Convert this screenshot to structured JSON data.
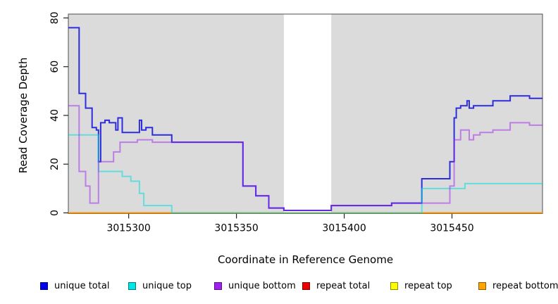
{
  "figure": {
    "xlabel": "Coordinate in Reference Genome",
    "ylabel": "Read Coverage Depth"
  },
  "chart_data": {
    "type": "line",
    "subtype": "step-coverage-plot",
    "title": "",
    "xlabel": "Coordinate in Reference Genome",
    "ylabel": "Read Coverage Depth",
    "xlim": [
      3015272,
      3015492
    ],
    "ylim": [
      0,
      80
    ],
    "x_ticks": [
      3015300,
      3015350,
      3015400,
      3015450
    ],
    "y_ticks": [
      0,
      20,
      40,
      60,
      80
    ],
    "grid": false,
    "plot_bg_color": "#dbdbdb",
    "outer_bg_color": "#ffffff",
    "box_color": "#4d4d4d",
    "masked_region": {
      "x_start": 3015372,
      "x_end": 3015394,
      "color": "#ffffff"
    },
    "legend_position": "bottom",
    "series": [
      {
        "name": "unique total",
        "color": "#2424dd",
        "opacity": 0.95,
        "width": 2,
        "steps": [
          [
            3015272,
            76
          ],
          [
            3015277,
            49
          ],
          [
            3015280,
            43
          ],
          [
            3015283,
            35
          ],
          [
            3015285,
            34
          ],
          [
            3015286,
            21
          ],
          [
            3015287,
            37
          ],
          [
            3015289,
            38
          ],
          [
            3015291,
            37
          ],
          [
            3015294,
            34
          ],
          [
            3015295,
            39
          ],
          [
            3015297,
            33
          ],
          [
            3015305,
            38
          ],
          [
            3015306,
            34
          ],
          [
            3015308,
            35
          ],
          [
            3015311,
            32
          ],
          [
            3015320,
            29
          ],
          [
            3015353,
            11
          ],
          [
            3015359,
            7
          ],
          [
            3015365,
            2
          ],
          [
            3015372,
            1
          ],
          [
            3015394,
            3
          ],
          [
            3015422,
            4
          ],
          [
            3015436,
            14
          ],
          [
            3015449,
            21
          ],
          [
            3015451,
            39
          ],
          [
            3015452,
            43
          ],
          [
            3015454,
            44
          ],
          [
            3015457,
            46
          ],
          [
            3015458,
            43
          ],
          [
            3015460,
            44
          ],
          [
            3015469,
            46
          ],
          [
            3015477,
            48
          ],
          [
            3015486,
            47
          ]
        ]
      },
      {
        "name": "unique top",
        "color": "#00dcdc",
        "opacity": 0.55,
        "width": 2,
        "steps": [
          [
            3015272,
            32
          ],
          [
            3015286,
            17
          ],
          [
            3015297,
            15
          ],
          [
            3015301,
            13
          ],
          [
            3015305,
            8
          ],
          [
            3015307,
            3
          ],
          [
            3015320,
            0
          ],
          [
            3015436,
            10
          ],
          [
            3015456,
            12
          ]
        ]
      },
      {
        "name": "unique bottom",
        "color": "#a020f0",
        "opacity": 0.5,
        "width": 2,
        "steps": [
          [
            3015272,
            44
          ],
          [
            3015277,
            17
          ],
          [
            3015280,
            11
          ],
          [
            3015282,
            4
          ],
          [
            3015286,
            21
          ],
          [
            3015293,
            25
          ],
          [
            3015296,
            29
          ],
          [
            3015304,
            30
          ],
          [
            3015311,
            29
          ],
          [
            3015353,
            11
          ],
          [
            3015359,
            7
          ],
          [
            3015365,
            2
          ],
          [
            3015372,
            1
          ],
          [
            3015394,
            3
          ],
          [
            3015422,
            4
          ],
          [
            3015449,
            11
          ],
          [
            3015451,
            30
          ],
          [
            3015454,
            34
          ],
          [
            3015458,
            30
          ],
          [
            3015460,
            32
          ],
          [
            3015463,
            33
          ],
          [
            3015469,
            34
          ],
          [
            3015477,
            37
          ],
          [
            3015486,
            36
          ]
        ]
      },
      {
        "name": "repeat total",
        "color": "#ee0000",
        "opacity": 1,
        "width": 2,
        "steps": [
          [
            3015272,
            0
          ]
        ]
      },
      {
        "name": "repeat top",
        "color": "#f5ec1e",
        "opacity": 1,
        "width": 2,
        "steps": [
          [
            3015272,
            0
          ]
        ]
      },
      {
        "name": "repeat bottom",
        "color": "#ff8c00",
        "opacity": 0.9,
        "width": 2,
        "steps": [
          [
            3015272,
            0
          ]
        ]
      }
    ],
    "legend": [
      {
        "label": "unique total",
        "color": "#0000ee"
      },
      {
        "label": "unique top",
        "color": "#00e5e5"
      },
      {
        "label": "unique bottom",
        "color": "#a020f0"
      },
      {
        "label": "repeat total",
        "color": "#ee0000"
      },
      {
        "label": "repeat top",
        "color": "#ffff00"
      },
      {
        "label": "repeat bottom",
        "color": "#ffa500"
      }
    ]
  }
}
